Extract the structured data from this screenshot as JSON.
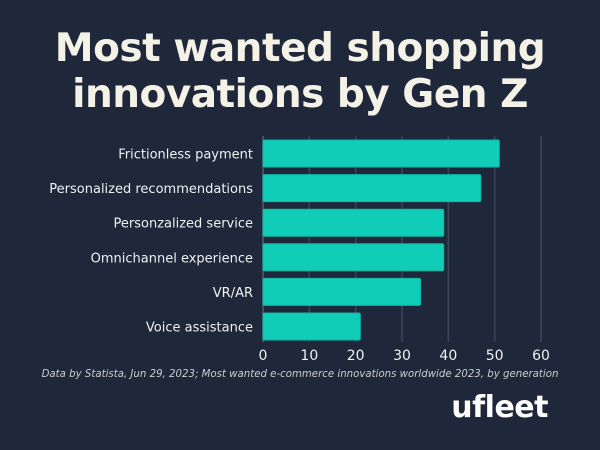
{
  "chart_data": {
    "type": "bar",
    "orientation": "horizontal",
    "title": "Most wanted shopping innovations by Gen Z",
    "categories": [
      "Frictionless payment",
      "Personalized recommendations",
      "Personzalized service",
      "Omnichannel experience",
      "VR/AR",
      "Voice assistance"
    ],
    "values": [
      51,
      47,
      39,
      39,
      34,
      21
    ],
    "xlim": [
      0,
      60
    ],
    "xticks": [
      0,
      10,
      20,
      30,
      40,
      50,
      60
    ],
    "grid": true,
    "bar_color": "#10cdb7",
    "background": "#1f283a"
  },
  "source": "Data by Statista, Jun 29, 2023; Most wanted e-commerce innovations worldwide 2023, by generation",
  "logo": "ufleet"
}
